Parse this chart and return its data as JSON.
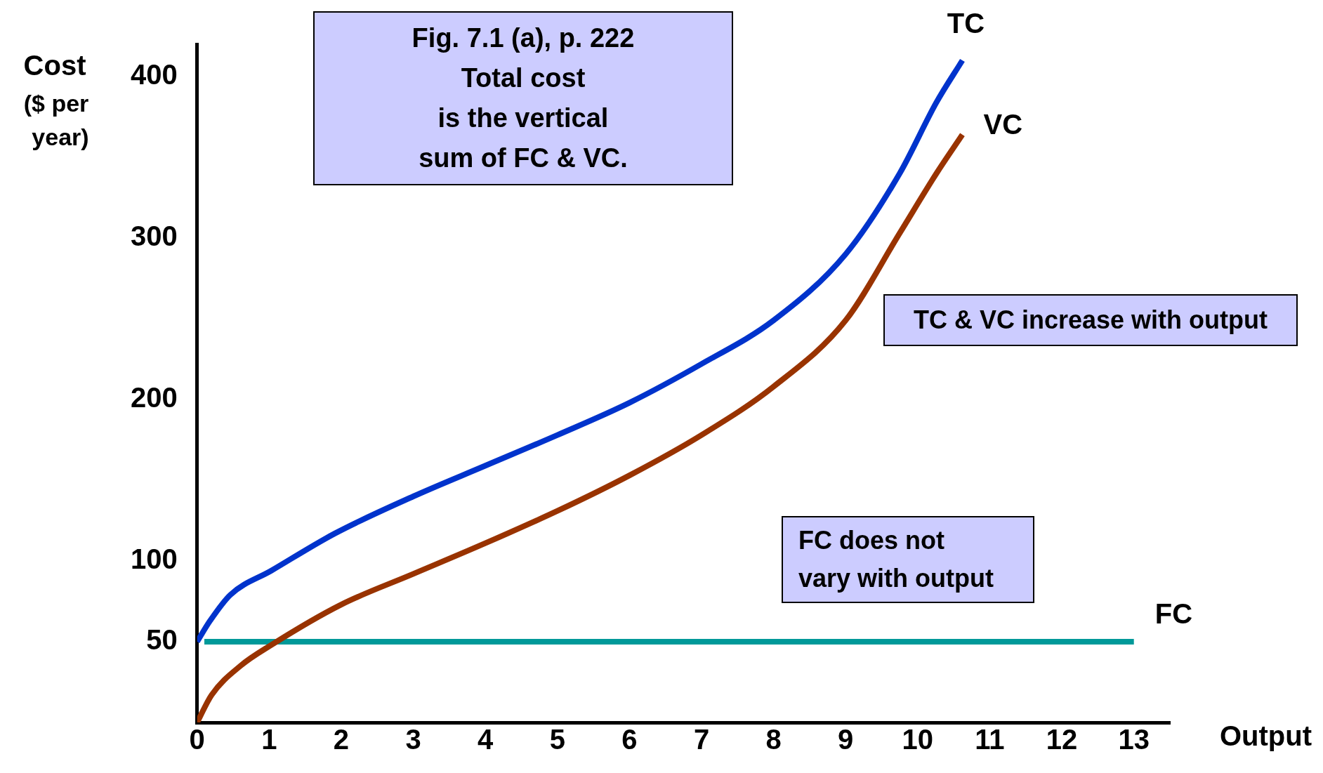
{
  "chart_data": {
    "type": "line",
    "xlabel": "Output",
    "ylabel": "Cost ($ per year)",
    "xlim": [
      0,
      13.5
    ],
    "ylim": [
      0,
      420
    ],
    "xticks": [
      0,
      1,
      2,
      3,
      4,
      5,
      6,
      7,
      8,
      9,
      10,
      11,
      12,
      13
    ],
    "yticks": [
      50,
      100,
      200,
      300,
      400
    ],
    "grid": false,
    "legend": false,
    "marker": "none",
    "line_style": "solid",
    "series": [
      {
        "name": "TC",
        "color": "#0033cc",
        "x": [
          0,
          0.18,
          0.46,
          1.03,
          1.91,
          3,
          4,
          5,
          6,
          7,
          8,
          9,
          9.75,
          10.26,
          10.62
        ],
        "values": [
          50,
          63,
          79,
          94,
          117,
          140,
          159,
          178,
          198,
          222,
          249,
          290,
          340,
          384,
          410
        ]
      },
      {
        "name": "VC",
        "color": "#993300",
        "x": [
          0,
          0.2,
          0.6,
          1.03,
          2,
          3,
          4,
          5,
          6,
          7,
          8,
          9,
          9.75,
          10.26,
          10.62
        ],
        "values": [
          0,
          17,
          35,
          48,
          73,
          92,
          111,
          131,
          153,
          178,
          208,
          249,
          303,
          340,
          364
        ]
      },
      {
        "name": "FC",
        "color": "#009999",
        "x": [
          0.1,
          13
        ],
        "values": [
          50,
          50
        ]
      }
    ],
    "annotations": [
      "Fig. 7.1 (a), p. 222\nTotal cost\nis the vertical\nsum of FC & VC.",
      "TC & VC increase with output",
      "FC does not\nvary with output"
    ]
  }
}
